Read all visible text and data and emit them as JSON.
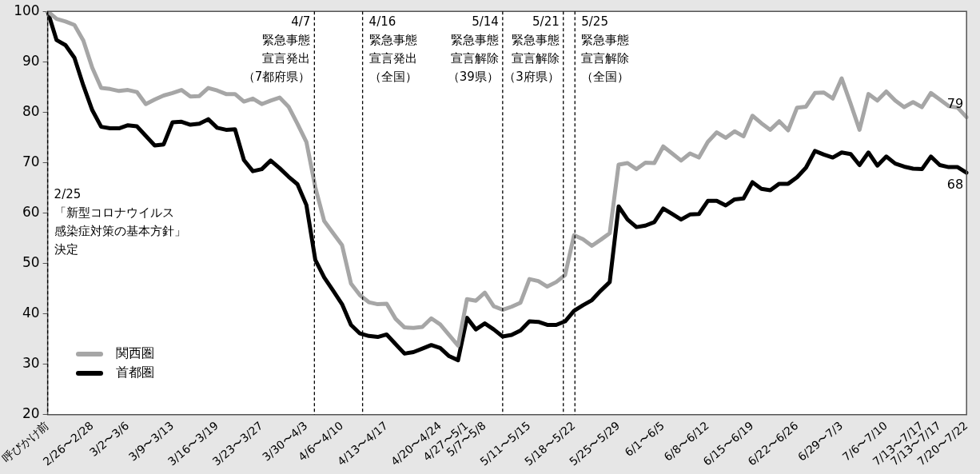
{
  "chart_data": {
    "type": "line",
    "categories": [
      "呼びかけ前",
      null,
      null,
      null,
      null,
      "2/26〜2/28",
      null,
      null,
      null,
      "3/2〜3/6",
      null,
      null,
      null,
      null,
      "3/9〜3/13",
      null,
      null,
      null,
      null,
      "3/16〜3/19",
      null,
      null,
      null,
      null,
      "3/23〜3/27",
      null,
      null,
      null,
      null,
      "3/30〜4/3",
      null,
      null,
      null,
      "4/6〜4/10",
      null,
      null,
      null,
      null,
      "4/13〜4/17",
      null,
      null,
      null,
      null,
      null,
      "4/20〜4/24",
      null,
      null,
      "4/27〜5/1",
      null,
      "5/7〜5/8",
      null,
      null,
      null,
      null,
      "5/11〜5/15",
      null,
      null,
      null,
      null,
      "5/18〜5/22",
      null,
      null,
      null,
      null,
      "5/25〜5/29",
      null,
      null,
      null,
      null,
      "6/1〜6/5",
      null,
      null,
      null,
      null,
      "6/8〜6/12",
      null,
      null,
      null,
      null,
      "6/15〜6/19",
      null,
      null,
      null,
      null,
      "6/22〜6/26",
      null,
      null,
      null,
      null,
      "6/29〜7/3",
      null,
      null,
      null,
      null,
      "7/6〜7/10",
      null,
      null,
      null,
      "7/13〜7/17",
      null,
      "7/13〜7/17",
      null,
      null,
      "7/20〜7/22"
    ],
    "series": [
      {
        "name": "関西圏",
        "color": "#a6a6a6",
        "values": [
          100,
          98.5,
          98,
          97.3,
          94.2,
          88.8,
          84.8,
          84.6,
          84.2,
          84.4,
          84,
          81.6,
          82.5,
          83.3,
          83.8,
          84.4,
          83.1,
          83.2,
          84.8,
          84.3,
          83.6,
          83.6,
          82.1,
          82.7,
          81.6,
          82.3,
          82.9,
          81.1,
          77.7,
          74.1,
          65.1,
          58.4,
          56,
          53.6,
          46,
          43.7,
          42.3,
          41.9,
          42,
          39,
          37.3,
          37.2,
          37.4,
          39.1,
          37.9,
          35.8,
          33.7,
          42.9,
          42.6,
          44.2,
          41.5,
          40.8,
          41.4,
          42.2,
          46.9,
          46.5,
          45.4,
          46.3,
          47.7,
          55.6,
          54.8,
          53.5,
          54.7,
          56,
          69.6,
          69.9,
          68.7,
          70,
          69.9,
          73.2,
          71.8,
          70.4,
          71.8,
          71,
          74.1,
          76,
          74.9,
          76.2,
          75.2,
          79.3,
          77.8,
          76.5,
          78.2,
          76.4,
          80.9,
          81.1,
          83.8,
          83.9,
          82.7,
          86.7,
          81.7,
          76.5,
          83.6,
          82.3,
          84.1,
          82.3,
          81,
          82,
          81,
          83.8,
          82.5,
          81.2,
          80.9,
          79
        ],
        "value_labels": [
          null,
          null,
          null,
          null,
          null,
          null,
          null,
          null,
          null,
          null,
          null,
          null,
          null,
          null,
          null,
          null,
          null,
          null,
          null,
          null,
          null,
          null,
          null,
          null,
          null,
          null,
          null,
          null,
          null,
          null,
          null,
          null,
          null,
          null,
          null,
          null,
          null,
          null,
          null,
          null,
          null,
          null,
          null,
          null,
          null,
          null,
          null,
          null,
          null,
          null,
          null,
          null,
          null,
          null,
          null,
          null,
          null,
          null,
          null,
          null,
          null,
          null,
          null,
          null,
          null,
          null,
          null,
          null,
          null,
          null,
          null,
          null,
          null,
          null,
          null,
          null,
          null,
          null,
          null,
          null,
          null,
          null,
          null,
          null,
          null,
          null,
          null,
          null,
          null,
          null,
          null,
          null,
          null,
          null,
          null,
          null,
          null,
          null,
          null,
          null,
          null,
          null,
          null,
          "79"
        ]
      },
      {
        "name": "首都圏",
        "color": "#000000",
        "values": [
          100,
          94.3,
          93.3,
          90.8,
          85.3,
          80.4,
          77.1,
          76.8,
          76.8,
          77.4,
          77.2,
          75.3,
          73.4,
          73.6,
          78,
          78.1,
          77.5,
          77.7,
          78.6,
          76.9,
          76.5,
          76.6,
          70.5,
          68.3,
          68.7,
          70.4,
          68.9,
          67.2,
          65.7,
          61.6,
          50.7,
          47.2,
          44.6,
          41.9,
          37.8,
          36.1,
          35.6,
          35.4,
          35.9,
          34,
          32.1,
          32.4,
          33.1,
          33.8,
          33.2,
          31.6,
          30.8,
          39.2,
          36.9,
          38.1,
          36.9,
          35.5,
          35.8,
          36.7,
          38.5,
          38.4,
          37.8,
          37.8,
          38.5,
          40.6,
          41.7,
          42.7,
          44.6,
          46.3,
          61.3,
          58.7,
          57.2,
          57.5,
          58.2,
          60.9,
          59.8,
          58.7,
          59.7,
          59.8,
          62.4,
          62.4,
          61.5,
          62.7,
          62.9,
          66.1,
          64.8,
          64.5,
          65.8,
          65.8,
          67.1,
          69,
          72.3,
          71.6,
          71,
          72,
          71.7,
          69.5,
          72,
          69.4,
          71.2,
          69.8,
          69.2,
          68.8,
          68.7,
          71.2,
          69.5,
          69.1,
          69.1,
          68
        ],
        "value_labels": [
          null,
          null,
          null,
          null,
          null,
          null,
          null,
          null,
          null,
          null,
          null,
          null,
          null,
          null,
          null,
          null,
          null,
          null,
          null,
          null,
          null,
          null,
          null,
          null,
          null,
          null,
          null,
          null,
          null,
          null,
          null,
          null,
          null,
          null,
          null,
          null,
          null,
          null,
          null,
          null,
          null,
          null,
          null,
          null,
          null,
          null,
          null,
          null,
          null,
          null,
          null,
          null,
          null,
          null,
          null,
          null,
          null,
          null,
          null,
          null,
          null,
          null,
          null,
          null,
          null,
          null,
          null,
          null,
          null,
          null,
          null,
          null,
          null,
          null,
          null,
          null,
          null,
          null,
          null,
          null,
          null,
          null,
          null,
          null,
          null,
          null,
          null,
          null,
          null,
          null,
          null,
          null,
          null,
          null,
          null,
          null,
          null,
          null,
          null,
          null,
          null,
          null,
          null,
          "68"
        ]
      }
    ],
    "ylim": [
      20,
      100
    ],
    "yticks": [
      20,
      30,
      40,
      50,
      60,
      70,
      80,
      90,
      100
    ],
    "grid": false,
    "legend": "bottom left",
    "marker": "none",
    "line_style": "solid",
    "annotations": [
      "2/25",
      "「新型コロナウイルス",
      "感染症対策の基本方針」",
      "決定",
      "4/7",
      "緊急事態",
      "宣言発出",
      "（7都府県）",
      "4/16",
      "緊急事態",
      "宣言発出",
      "（全国）",
      "5/14",
      "緊急事態",
      "宣言解除",
      "（39県）",
      "5/21",
      "緊急事態",
      "宣言解除",
      "（3府県）",
      "5/25",
      "緊急事態",
      "宣言解除",
      "（全国）"
    ]
  }
}
